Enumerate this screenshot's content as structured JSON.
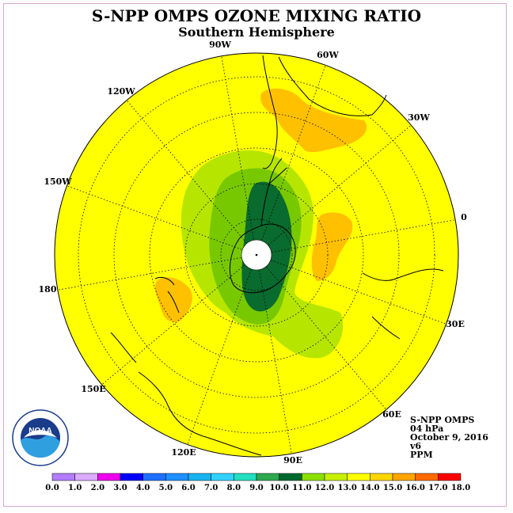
{
  "title": "S-NPP OMPS OZONE MIXING RATIO",
  "subtitle": "Southern Hemisphere",
  "longitude_labels": [
    "90W",
    "60W",
    "30W",
    "0",
    "30E",
    "60E",
    "90E",
    "120E",
    "150E",
    "180",
    "150W",
    "120W"
  ],
  "info": {
    "instrument": "S-NPP OMPS",
    "level": "04 hPa",
    "date": "October 9, 2016",
    "version": "v6",
    "units": "PPM"
  },
  "logo_text": "NOAA",
  "color_scale": {
    "ticks": [
      "0.0",
      "1.0",
      "2.0",
      "3.0",
      "4.0",
      "5.0",
      "6.0",
      "7.0",
      "8.0",
      "9.0",
      "10.0",
      "11.0",
      "12.0",
      "13.0",
      "14.0",
      "15.0",
      "16.0",
      "17.0",
      "18.0"
    ],
    "colors": [
      "#b47cff",
      "#dcaaff",
      "#ee00ee",
      "#0000ff",
      "#1f6fff",
      "#1e90ff",
      "#18b4f0",
      "#32d2ff",
      "#23e0c0",
      "#2fa84f",
      "#006a2e",
      "#8ee000",
      "#c8f000",
      "#ffff00",
      "#ffd700",
      "#ffa500",
      "#ff6a00",
      "#ff0000",
      "#8b5a2b"
    ]
  },
  "map_colors": {
    "background": "#ffff00",
    "orange": "#ffc000",
    "light_green": "#b6e600",
    "mid_green": "#78c800",
    "dark_green": "#0a6b2e",
    "pole_hole": "#ffffff"
  }
}
